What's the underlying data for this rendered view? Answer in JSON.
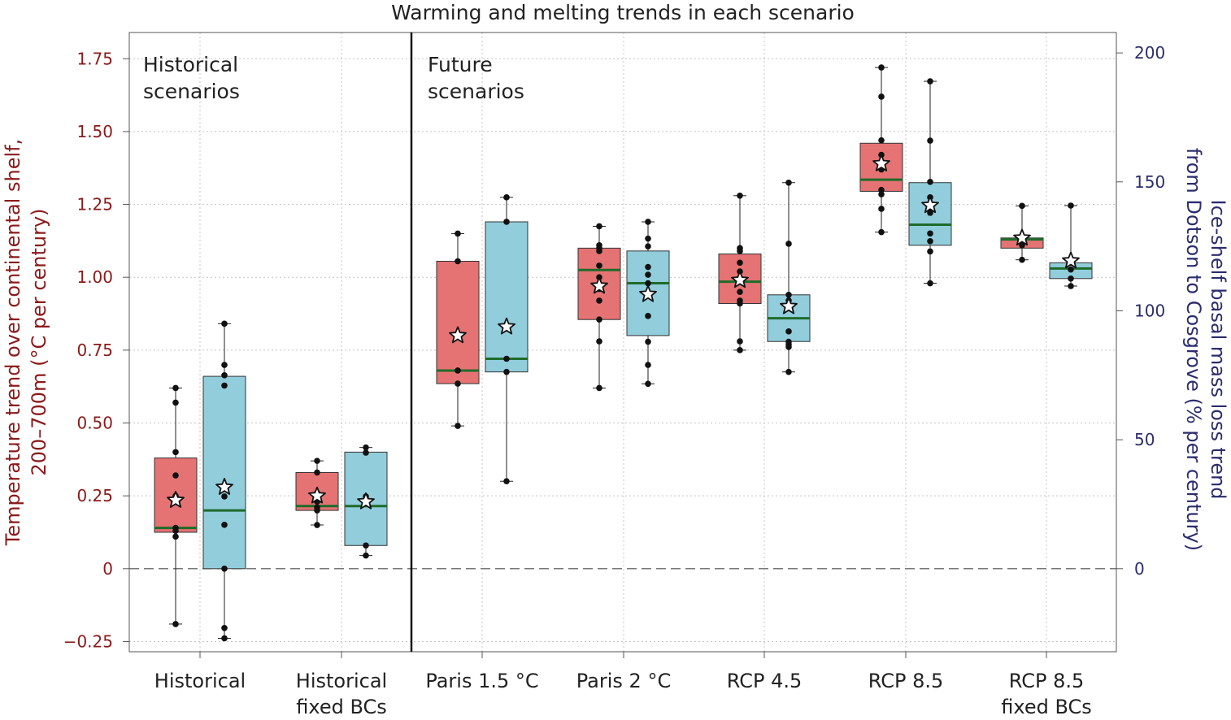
{
  "chart_data": {
    "type": "box",
    "title": "Warming and melting trends in each scenario",
    "ylabel_left_lines": [
      "Temperature trend over continental shelf,",
      "200–700m (°C per century)"
    ],
    "ylabel_right_lines": [
      "Ice-shelf basal mass loss trend",
      "from Dotson to Cosgrove (% per century)"
    ],
    "ylim_left": [
      -0.285,
      1.84
    ],
    "left_ticks": [
      -0.25,
      0,
      0.25,
      0.5,
      0.75,
      1.0,
      1.25,
      1.5,
      1.75
    ],
    "left_tick_labels": [
      "−0.25",
      "0",
      "0.25",
      "0.50",
      "0.75",
      "1.00",
      "1.25",
      "1.50",
      "1.75"
    ],
    "right_ticks": [
      0,
      50,
      100,
      150,
      200
    ],
    "right_tick_labels": [
      "0",
      "50",
      "100",
      "150",
      "200"
    ],
    "right_scale_per_left_unit": 113.0,
    "annotations": {
      "historical": [
        "Historical",
        "scenarios"
      ],
      "future": [
        "Future",
        "scenarios"
      ]
    },
    "categories": [
      {
        "label_lines": [
          "Historical"
        ]
      },
      {
        "label_lines": [
          "Historical",
          "fixed BCs"
        ]
      },
      {
        "label_lines": [
          "Paris 1.5 °C"
        ]
      },
      {
        "label_lines": [
          "Paris 2 °C"
        ]
      },
      {
        "label_lines": [
          "RCP 4.5"
        ]
      },
      {
        "label_lines": [
          "RCP 8.5"
        ]
      },
      {
        "label_lines": [
          "RCP 8.5",
          "fixed BCs"
        ]
      }
    ],
    "series": [
      {
        "name": "Temperature trend (°C per century, left axis)",
        "color": "#e57373",
        "boxes": [
          {
            "whisker_low": -0.19,
            "q1": 0.125,
            "median": 0.14,
            "q3": 0.38,
            "whisker_high": 0.62,
            "mean": 0.235,
            "points": [
              0.62,
              0.57,
              0.4,
              0.32,
              0.25,
              0.14,
              0.13,
              0.11,
              -0.19
            ]
          },
          {
            "whisker_low": 0.15,
            "q1": 0.2,
            "median": 0.215,
            "q3": 0.33,
            "whisker_high": 0.37,
            "mean": 0.25,
            "points": [
              0.37,
              0.33,
              0.26,
              0.23,
              0.21,
              0.2,
              0.15
            ]
          },
          {
            "whisker_low": 0.49,
            "q1": 0.635,
            "median": 0.68,
            "q3": 1.055,
            "whisker_high": 1.15,
            "mean": 0.8,
            "points": [
              1.15,
              1.055,
              0.8,
              0.68,
              0.635,
              0.49
            ]
          },
          {
            "whisker_low": 0.62,
            "q1": 0.855,
            "median": 1.025,
            "q3": 1.1,
            "whisker_high": 1.175,
            "mean": 0.97,
            "points": [
              1.175,
              1.1,
              1.11,
              1.09,
              1.04,
              1.0,
              0.96,
              0.92,
              0.855,
              0.78,
              0.62
            ]
          },
          {
            "whisker_low": 0.75,
            "q1": 0.91,
            "median": 0.985,
            "q3": 1.08,
            "whisker_high": 1.28,
            "mean": 0.99,
            "points": [
              1.28,
              1.1,
              1.09,
              1.05,
              1.02,
              0.99,
              0.95,
              0.92,
              0.91,
              0.78,
              0.75
            ]
          },
          {
            "whisker_low": 1.155,
            "q1": 1.295,
            "median": 1.335,
            "q3": 1.46,
            "whisker_high": 1.72,
            "mean": 1.39,
            "points": [
              1.72,
              1.62,
              1.47,
              1.42,
              1.37,
              1.3,
              1.285,
              1.235,
              1.155
            ]
          },
          {
            "whisker_low": 1.06,
            "q1": 1.1,
            "median": 1.13,
            "q3": 1.135,
            "whisker_high": 1.245,
            "mean": 1.135,
            "points": [
              1.245,
              1.135,
              1.11,
              1.06
            ]
          }
        ]
      },
      {
        "name": "Basal mass loss trend (% per century, right axis)",
        "color": "#92cddc",
        "boxes": [
          {
            "whisker_low": -27,
            "q1": 0,
            "median": 22.6,
            "q3": 74.6,
            "whisker_high": 95,
            "mean": 31.6,
            "points": [
              95,
              79,
              75,
              71,
              28,
              17,
              0,
              -23,
              -27
            ]
          },
          {
            "whisker_low": 5.1,
            "q1": 9,
            "median": 24.3,
            "q3": 45.2,
            "whisker_high": 47,
            "mean": 26,
            "points": [
              47,
              45,
              28,
              9,
              5.1
            ]
          },
          {
            "whisker_low": 33.9,
            "q1": 76.3,
            "median": 81.4,
            "q3": 134.5,
            "whisker_high": 144,
            "mean": 93.8,
            "points": [
              144,
              134.5,
              81.4,
              76.3,
              33.9
            ]
          },
          {
            "whisker_low": 71.7,
            "q1": 90.4,
            "median": 110.7,
            "q3": 123.2,
            "whisker_high": 134.5,
            "mean": 106.4,
            "points": [
              134.5,
              128,
              125,
              117,
              114,
              110.7,
              98,
              88,
              79,
              71.7
            ]
          },
          {
            "whisker_low": 76.3,
            "q1": 88.1,
            "median": 97.1,
            "q3": 106.2,
            "whisker_high": 149.7,
            "mean": 101.7,
            "points": [
              149.7,
              126,
              106.2,
              104,
              92,
              88,
              87,
              86,
              76.3
            ]
          },
          {
            "whisker_low": 110.7,
            "q1": 125.4,
            "median": 133.4,
            "q3": 149.7,
            "whisker_high": 189,
            "mean": 140.9,
            "points": [
              189,
              166,
              150,
              144,
              138,
              130,
              127,
              123,
              110.7
            ]
          },
          {
            "whisker_low": 109.6,
            "q1": 112.5,
            "median": 116.4,
            "q3": 118.6,
            "whisker_high": 140.8,
            "mean": 119.4,
            "points": [
              140.8,
              118.6,
              116,
              112.5,
              109.6
            ]
          }
        ]
      }
    ]
  }
}
